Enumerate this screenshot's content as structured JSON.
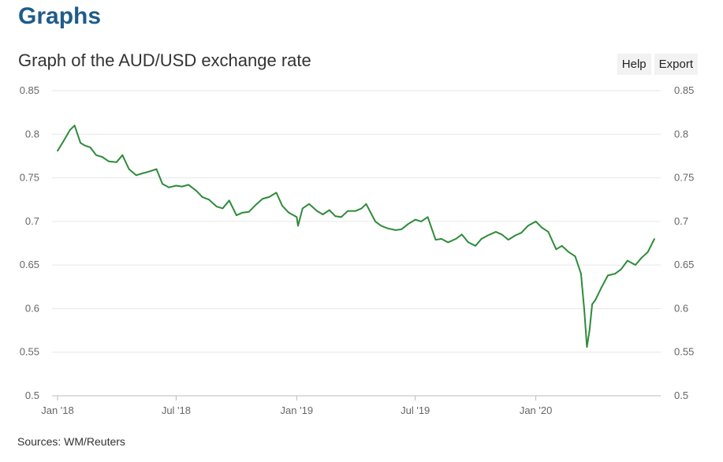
{
  "page": {
    "heading": "Graphs",
    "buttons": {
      "help": "Help",
      "export": "Export"
    },
    "source": "Sources: WM/Reuters"
  },
  "colors": {
    "heading": "#1f5c8b",
    "line": "#2e8b3a",
    "grid": "#e6e6e6"
  },
  "chart_data": {
    "type": "line",
    "title": "Graph of the AUD/USD exchange rate",
    "xlabel": "",
    "ylabel": "",
    "grid": true,
    "legend": "none",
    "ylim": [
      0.5,
      0.85
    ],
    "yticks": [
      0.5,
      0.55,
      0.6,
      0.65,
      0.7,
      0.75,
      0.8,
      0.85
    ],
    "ytick_labels": [
      "0.5",
      "0.55",
      "0.6",
      "0.65",
      "0.7",
      "0.75",
      "0.8",
      "0.85"
    ],
    "xlim": [
      "2018-01-01",
      "2020-06-30"
    ],
    "xticks": [
      "2018-01-01",
      "2018-07-01",
      "2019-01-01",
      "2019-07-01",
      "2020-01-01"
    ],
    "xtick_labels": [
      "Jan '18",
      "Jul '18",
      "Jan '19",
      "Jul '19",
      "Jan '20"
    ],
    "x": [
      "2018-01-01",
      "2018-01-10",
      "2018-01-20",
      "2018-01-27",
      "2018-02-05",
      "2018-02-12",
      "2018-02-20",
      "2018-03-01",
      "2018-03-10",
      "2018-03-20",
      "2018-04-01",
      "2018-04-10",
      "2018-04-20",
      "2018-05-01",
      "2018-05-10",
      "2018-05-20",
      "2018-06-01",
      "2018-06-10",
      "2018-06-20",
      "2018-07-01",
      "2018-07-10",
      "2018-07-20",
      "2018-08-01",
      "2018-08-10",
      "2018-08-20",
      "2018-09-01",
      "2018-09-10",
      "2018-09-20",
      "2018-10-01",
      "2018-10-10",
      "2018-10-20",
      "2018-11-01",
      "2018-11-10",
      "2018-11-20",
      "2018-12-01",
      "2018-12-10",
      "2018-12-20",
      "2019-01-01",
      "2019-01-03",
      "2019-01-10",
      "2019-01-20",
      "2019-02-01",
      "2019-02-10",
      "2019-02-20",
      "2019-03-01",
      "2019-03-10",
      "2019-03-20",
      "2019-04-01",
      "2019-04-10",
      "2019-04-17",
      "2019-05-01",
      "2019-05-10",
      "2019-05-20",
      "2019-06-01",
      "2019-06-10",
      "2019-06-20",
      "2019-07-01",
      "2019-07-10",
      "2019-07-20",
      "2019-08-01",
      "2019-08-10",
      "2019-08-20",
      "2019-09-01",
      "2019-09-10",
      "2019-09-20",
      "2019-10-01",
      "2019-10-10",
      "2019-10-20",
      "2019-11-01",
      "2019-11-10",
      "2019-11-20",
      "2019-12-01",
      "2019-12-10",
      "2019-12-20",
      "2020-01-01",
      "2020-01-10",
      "2020-01-20",
      "2020-02-01",
      "2020-02-10",
      "2020-02-20",
      "2020-03-01",
      "2020-03-10",
      "2020-03-15",
      "2020-03-19",
      "2020-03-23",
      "2020-03-27",
      "2020-04-01",
      "2020-04-10",
      "2020-04-20",
      "2020-05-01",
      "2020-05-10",
      "2020-05-20",
      "2020-06-01",
      "2020-06-10",
      "2020-06-20",
      "2020-06-30"
    ],
    "series": [
      {
        "values": [
          0.781,
          0.792,
          0.805,
          0.81,
          0.79,
          0.787,
          0.785,
          0.776,
          0.774,
          0.769,
          0.768,
          0.776,
          0.76,
          0.753,
          0.755,
          0.757,
          0.76,
          0.743,
          0.739,
          0.741,
          0.74,
          0.742,
          0.735,
          0.728,
          0.725,
          0.717,
          0.715,
          0.724,
          0.707,
          0.71,
          0.711,
          0.72,
          0.726,
          0.728,
          0.733,
          0.718,
          0.71,
          0.705,
          0.695,
          0.715,
          0.72,
          0.712,
          0.708,
          0.713,
          0.706,
          0.705,
          0.712,
          0.712,
          0.715,
          0.72,
          0.7,
          0.695,
          0.692,
          0.69,
          0.691,
          0.697,
          0.702,
          0.7,
          0.705,
          0.679,
          0.68,
          0.676,
          0.68,
          0.685,
          0.676,
          0.672,
          0.68,
          0.684,
          0.688,
          0.685,
          0.679,
          0.684,
          0.687,
          0.695,
          0.7,
          0.693,
          0.688,
          0.668,
          0.672,
          0.665,
          0.66,
          0.64,
          0.598,
          0.556,
          0.575,
          0.605,
          0.61,
          0.624,
          0.638,
          0.64,
          0.645,
          0.655,
          0.65,
          0.658,
          0.665,
          0.68
        ]
      }
    ]
  }
}
